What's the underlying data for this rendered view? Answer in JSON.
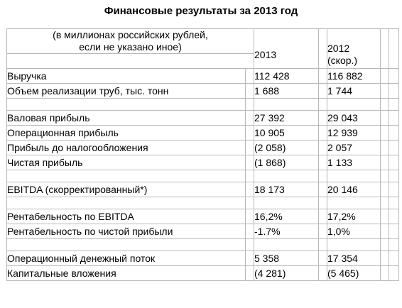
{
  "title": "Финансовые результаты за 2013 год",
  "header": {
    "note_line1": "(в миллионах российских рублей,",
    "note_line2": "если не указано иное)",
    "col_2013": "2013",
    "col_2012": "2012",
    "col_2012_note": "(скор.)"
  },
  "rows": [
    {
      "label": "Выручка",
      "v2013": "112 428",
      "v2012": "116 882"
    },
    {
      "label": "Объем реализации труб, тыс. тонн",
      "v2013": "1 688",
      "v2012": "1 744"
    },
    {
      "label": "Валовая прибыль",
      "v2013": "27 392",
      "v2012": "29 043"
    },
    {
      "label": "Операционная прибыль",
      "v2013": "10 905",
      "v2012": "12 939"
    },
    {
      "label": "Прибыль до налогообложения",
      "v2013": "(2 058)",
      "v2012": "2 057"
    },
    {
      "label": "Чистая прибыль",
      "v2013": "(1 868)",
      "v2012": "1 133"
    },
    {
      "label": "EBITDA (скорректированный*)",
      "v2013": "18 173",
      "v2012": "20 146"
    },
    {
      "label": "Рентабельность по EBITDA",
      "v2013": "16,2%",
      "v2012": "17,2%"
    },
    {
      "label": "Рентабельность по чистой прибыли",
      "v2013": "-1.7%",
      "v2012": "1,0%"
    },
    {
      "label": "Операционный денежный поток",
      "v2013": "5 358",
      "v2012": "17 354"
    },
    {
      "label": "Капитальные вложения",
      "v2013": "(4 281)",
      "v2012": "(5 465)"
    }
  ]
}
